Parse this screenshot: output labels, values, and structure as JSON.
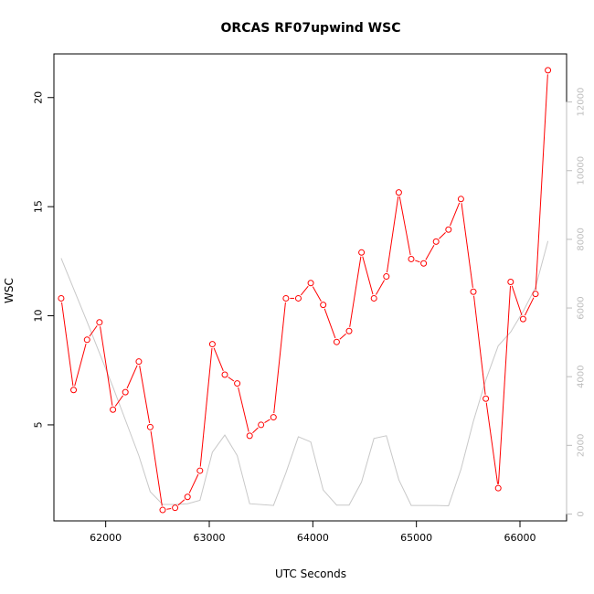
{
  "chart_data": {
    "type": "line",
    "title": "ORCAS RF07upwind WSC",
    "xlabel": "UTC Seconds",
    "ylabel": "WSC",
    "x_ticks": [
      62000,
      63000,
      64000,
      65000,
      66000
    ],
    "y_ticks": [
      5,
      10,
      15,
      20
    ],
    "y2_ticks": [
      0,
      2000,
      4000,
      6000,
      8000,
      10000,
      12000
    ],
    "xlim": [
      61500,
      66450
    ],
    "ylim": [
      0.6,
      22.0
    ],
    "y2lim": [
      -200,
      13400
    ],
    "grid": false,
    "colors": {
      "series": "#ff0000",
      "secondary": "#c8c8c8",
      "frame": "#000000"
    },
    "series": [
      {
        "axis": "left",
        "style": "line-with-circles",
        "x": [
          61570,
          61690,
          61820,
          61940,
          62070,
          62190,
          62320,
          62430,
          62550,
          62670,
          62790,
          62910,
          63030,
          63150,
          63270,
          63390,
          63500,
          63620,
          63740,
          63860,
          63980,
          64100,
          64230,
          64350,
          64470,
          64590,
          64710,
          64830,
          64950,
          65070,
          65190,
          65310,
          65430,
          65550,
          65670,
          65790,
          65910,
          66030,
          66150,
          66270
        ],
        "y": [
          10.8,
          6.6,
          8.9,
          9.7,
          5.7,
          6.5,
          7.9,
          4.9,
          1.1,
          1.2,
          1.7,
          2.9,
          8.7,
          7.3,
          6.9,
          4.5,
          5.0,
          5.35,
          10.8,
          10.8,
          11.5,
          10.5,
          8.8,
          9.3,
          12.9,
          10.8,
          11.8,
          15.65,
          12.6,
          12.4,
          13.4,
          13.95,
          15.35,
          11.1,
          6.2,
          2.1,
          11.55,
          9.85,
          11.0,
          21.25
        ]
      },
      {
        "axis": "right",
        "style": "line",
        "x": [
          61570,
          61820,
          62070,
          62320,
          62430,
          62550,
          62670,
          62790,
          62910,
          63030,
          63150,
          63270,
          63390,
          63620,
          63740,
          63860,
          63980,
          64100,
          64230,
          64350,
          64470,
          64590,
          64710,
          64830,
          64950,
          65070,
          65190,
          65310,
          65430,
          65550,
          65670,
          65790,
          65910,
          66030,
          66150,
          66270
        ],
        "y": [
          7450,
          5600,
          3700,
          1700,
          650,
          280,
          280,
          300,
          400,
          1800,
          2300,
          1700,
          300,
          250,
          1200,
          2250,
          2100,
          700,
          260,
          260,
          930,
          2200,
          2280,
          1000,
          250,
          250,
          250,
          240,
          1300,
          2700,
          3900,
          4900,
          5300,
          5900,
          6600,
          7950
        ]
      }
    ]
  }
}
